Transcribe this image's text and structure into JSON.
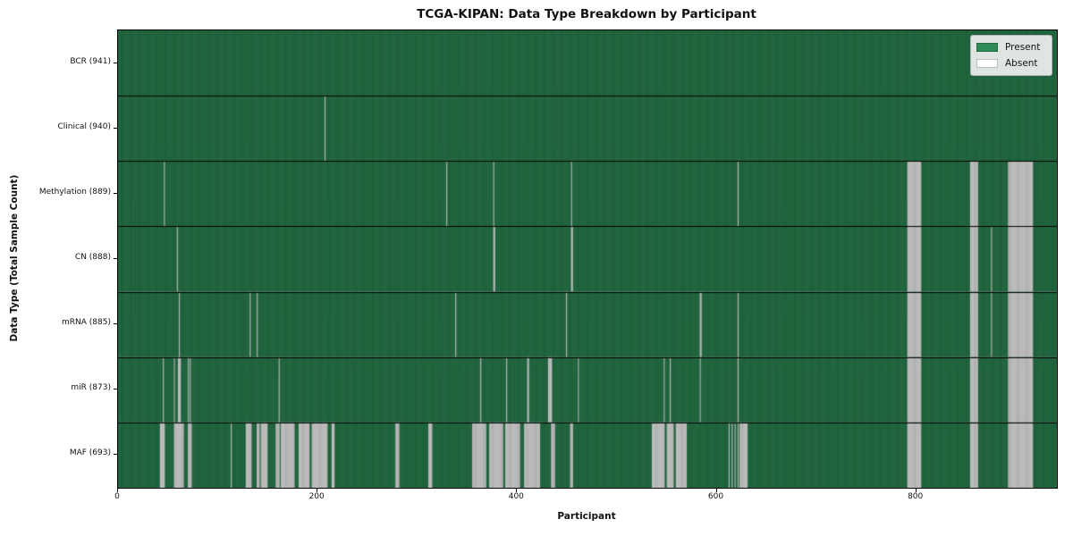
{
  "figure": {
    "title": "TCGA-KIPAN: Data Type Breakdown by Participant",
    "x_axis_label": "Participant",
    "y_axis_label": "Data Type (Total Sample Count)"
  },
  "legend": {
    "entries": [
      {
        "label": "Present",
        "color": "#2e8b57"
      },
      {
        "label": "Absent",
        "color": "#ffffff"
      }
    ]
  },
  "colors": {
    "present": "#2e8b57",
    "absent": "#ffffff",
    "bar_edge": "rgba(0,0,0,0.55)",
    "row_separator": "#000000",
    "plot_border": "#000000",
    "legend_bg": "#f0f0f0",
    "legend_border": "#b3b3b3"
  },
  "chart_data": {
    "type": "heatmap",
    "title": "TCGA-KIPAN: Data Type Breakdown by Participant",
    "xlabel": "Participant",
    "ylabel": "Data Type (Total Sample Count)",
    "x_ticks": [
      0,
      200,
      400,
      600,
      800
    ],
    "xlim": [
      0,
      941
    ],
    "n_participants": 941,
    "grid": false,
    "legend_position": "upper right",
    "legend_entries": [
      "Present",
      "Absent"
    ],
    "rows": [
      {
        "label": "BCR (941)",
        "data_type": "BCR",
        "present_count": 941,
        "absent_ranges": []
      },
      {
        "label": "Clinical (940)",
        "data_type": "Clinical",
        "present_count": 940,
        "absent_ranges": [
          [
            207,
            207
          ]
        ]
      },
      {
        "label": "Methylation (889)",
        "data_type": "Methylation",
        "present_count": 889,
        "absent_ranges": [
          [
            46,
            46
          ],
          [
            329,
            329
          ],
          [
            376,
            376
          ],
          [
            454,
            454
          ],
          [
            621,
            621
          ],
          [
            791,
            804
          ],
          [
            854,
            861
          ],
          [
            892,
            916
          ]
        ]
      },
      {
        "label": "CN (888)",
        "data_type": "CN",
        "present_count": 888,
        "absent_ranges": [
          [
            59,
            59
          ],
          [
            376,
            377
          ],
          [
            454,
            455
          ],
          [
            791,
            804
          ],
          [
            854,
            861
          ],
          [
            875,
            875
          ],
          [
            892,
            916
          ]
        ]
      },
      {
        "label": "mRNA (885)",
        "data_type": "mRNA",
        "present_count": 885,
        "absent_ranges": [
          [
            61,
            61
          ],
          [
            132,
            132
          ],
          [
            139,
            139
          ],
          [
            338,
            338
          ],
          [
            449,
            449
          ],
          [
            583,
            584
          ],
          [
            621,
            621
          ],
          [
            791,
            804
          ],
          [
            854,
            861
          ],
          [
            875,
            875
          ],
          [
            892,
            916
          ]
        ]
      },
      {
        "label": "miR (873)",
        "data_type": "miR",
        "present_count": 873,
        "absent_ranges": [
          [
            45,
            45
          ],
          [
            56,
            56
          ],
          [
            60,
            62
          ],
          [
            70,
            70
          ],
          [
            72,
            72
          ],
          [
            161,
            161
          ],
          [
            363,
            363
          ],
          [
            389,
            389
          ],
          [
            410,
            411
          ],
          [
            431,
            434
          ],
          [
            461,
            461
          ],
          [
            547,
            547
          ],
          [
            553,
            553
          ],
          [
            583,
            583
          ],
          [
            621,
            621
          ],
          [
            791,
            804
          ],
          [
            854,
            861
          ],
          [
            892,
            916
          ]
        ]
      },
      {
        "label": "MAF (693)",
        "data_type": "MAF",
        "present_count": 693,
        "absent_ranges": [
          [
            42,
            46
          ],
          [
            56,
            65
          ],
          [
            70,
            73
          ],
          [
            113,
            113
          ],
          [
            128,
            133
          ],
          [
            139,
            141
          ],
          [
            143,
            149
          ],
          [
            158,
            161
          ],
          [
            163,
            176
          ],
          [
            181,
            191
          ],
          [
            194,
            209
          ],
          [
            214,
            216
          ],
          [
            278,
            281
          ],
          [
            311,
            314
          ],
          [
            355,
            368
          ],
          [
            372,
            385
          ],
          [
            388,
            402
          ],
          [
            407,
            422
          ],
          [
            434,
            437
          ],
          [
            453,
            455
          ],
          [
            535,
            547
          ],
          [
            550,
            556
          ],
          [
            559,
            569
          ],
          [
            612,
            612
          ],
          [
            615,
            615
          ],
          [
            618,
            618
          ],
          [
            621,
            621
          ],
          [
            623,
            630
          ],
          [
            791,
            804
          ],
          [
            854,
            861
          ],
          [
            892,
            916
          ]
        ]
      }
    ]
  }
}
